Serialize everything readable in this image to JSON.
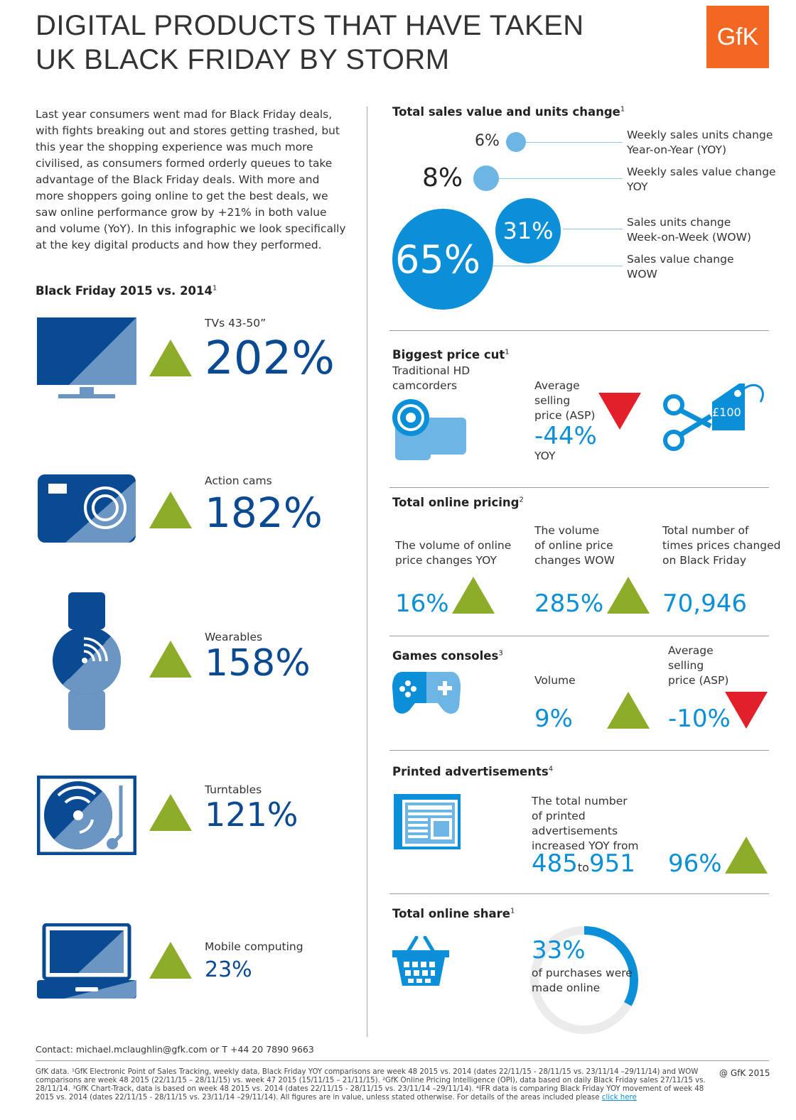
{
  "header": {
    "title_line1": "DIGITAL PRODUCTS THAT HAVE TAKEN",
    "title_line2": "UK BLACK FRIDAY BY STORM",
    "logo": "GfK"
  },
  "intro": "Last year consumers went mad for Black Friday deals, with fights breaking out and stores getting trashed, but this year the shopping experience was much more civilised, as consumers formed orderly queues to take advantage of the Black Friday deals. With more and more shoppers going online to get the best deals, we saw online performance grow by +21% in both value and volume (YoY). In this infographic we look specifically at the key digital products and how they performed.",
  "left": {
    "heading": "Black Friday 2015 vs. 2014",
    "heading_sup": "1",
    "categories": [
      {
        "label": "TVs 43-50”",
        "value": "202%",
        "icon": "tv-icon"
      },
      {
        "label": "Action cams",
        "value": "182%",
        "icon": "camera-icon"
      },
      {
        "label": "Wearables",
        "value": "158%",
        "icon": "smartwatch-icon"
      },
      {
        "label": "Turntables",
        "value": "121%",
        "icon": "turntable-icon"
      },
      {
        "label": "Mobile computing",
        "value": "23%",
        "icon": "laptop-icon"
      }
    ]
  },
  "sales": {
    "heading": "Total sales value and units change",
    "heading_sup": "1",
    "items": [
      {
        "value": "6%",
        "label_line1": "Weekly sales units change",
        "label_line2": "Year-on-Year (YOY)"
      },
      {
        "value": "8%",
        "label_line1": "Weekly sales value change",
        "label_line2": "YOY"
      },
      {
        "value": "31%",
        "label_line1": "Sales units change",
        "label_line2": "Week-on-Week (WOW)"
      },
      {
        "value": "65%",
        "label_line1": "Sales value change",
        "label_line2": "WOW"
      }
    ]
  },
  "price_cut": {
    "heading": "Biggest price cut",
    "heading_sup": "1",
    "product_line1": "Traditional HD",
    "product_line2": "camcorders",
    "asp_line1": "Average",
    "asp_line2": "selling",
    "asp_line3": "price (ASP)",
    "asp_value": "-44%",
    "asp_period": "YOY",
    "tag_text": "£100"
  },
  "online_pricing": {
    "heading": "Total online pricing",
    "heading_sup": "2",
    "cols": [
      {
        "line1": "The volume of online",
        "line2": "price changes YOY",
        "line3": "",
        "value": "16%"
      },
      {
        "line1": "The volume",
        "line2": "of online price",
        "line3": "changes WOW",
        "value": "285%"
      },
      {
        "line1": "Total number of",
        "line2": "times prices changed",
        "line3": "on Black Friday",
        "value": "70,946"
      }
    ]
  },
  "games": {
    "heading": "Games consoles",
    "heading_sup": "3",
    "volume_label": "Volume",
    "volume_value": "9%",
    "asp_line1": "Average",
    "asp_line2": "selling",
    "asp_line3": "price (ASP)",
    "asp_value": "-10%"
  },
  "printed": {
    "heading": "Printed advertisements",
    "heading_sup": "4",
    "line1": "The total number",
    "line2": "of printed",
    "line3": "advertisements",
    "line4": "increased YOY from",
    "from": "485",
    "to_word": "to",
    "to": "951",
    "pct": "96%"
  },
  "online_share": {
    "heading": "Total online share",
    "heading_sup": "1",
    "value": "33%",
    "fraction": 0.33,
    "line1": "of purchases were",
    "line2": "made online"
  },
  "footer": {
    "contact": "Contact: michael.mclaughlin@gfk.com or T +44 20 7890 9663",
    "notes": "GfK data. ¹GfK Electronic Point of Sales Tracking, weekly data, Black Friday YOY comparisons are week 48 2015 vs. 2014 (dates 22/11/15 - 28/11/15 vs. 23/11/14 –29/11/14) and WOW comparisons are week 48 2015 (22/11/15 – 28/11/15) vs. week 47 2015 (15/11/15 – 21/11/15). ²GfK Online Pricing Intelligence (OPI), data based on daily Black Friday sales 27/11/15 vs. 28/11/14. ³GfK Chart-Track, data is based on week 48 2015 vs. 2014 (dates 22/11/15 - 28/11/15 vs. 23/11/14 –29/11/14). ⁴IFR data is comparing Black Friday YOY movement of week 48 2015 vs. 2014 (dates 22/11/15 - 28/11/15 vs. 23/11/14 –29/11/14). All figures are in value, unless stated otherwise.  For details of the areas included please",
    "link": "click here",
    "copyright": "@ GfK 2015"
  },
  "colors": {
    "dark_blue": "#0a4a93",
    "mid_blue": "#0a8fd8",
    "light_blue": "#6db5e4",
    "green": "#8cac2a",
    "red": "#e3202a",
    "orange": "#f26722"
  }
}
